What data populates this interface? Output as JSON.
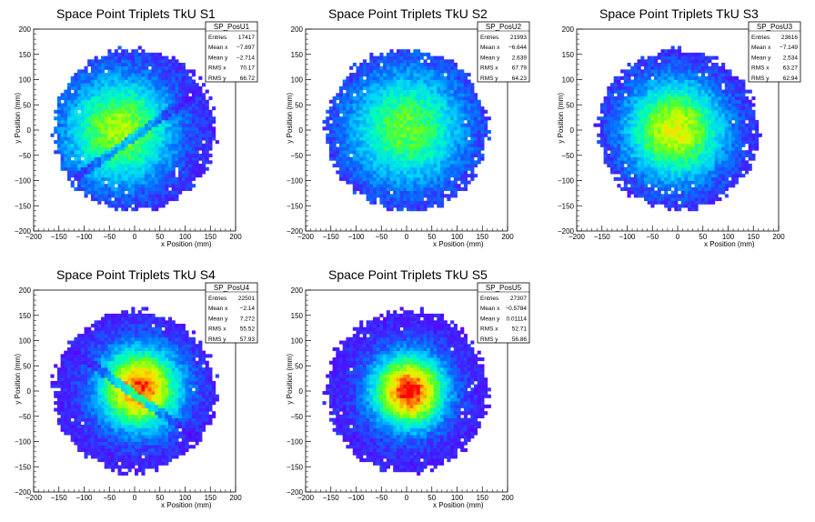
{
  "chart_data": [
    {
      "type": "heatmap",
      "title": "Space Point Triplets TkU S1",
      "xlabel": "x Position (mm)",
      "ylabel": "y Position (mm)",
      "xlim": [
        -200,
        200
      ],
      "ylim": [
        -200,
        200
      ],
      "xticks": [
        "−200",
        "−150",
        "−100",
        "−50",
        "0",
        "50",
        "100",
        "150",
        "200"
      ],
      "yticks": [
        "−200",
        "−150",
        "−100",
        "−50",
        "0",
        "50",
        "100",
        "150",
        "200"
      ],
      "stats": {
        "name": "SP_PosU1",
        "rows": [
          {
            "label": "Entries",
            "value": "17417"
          },
          {
            "label": "Mean x",
            "value": "−7.897"
          },
          {
            "label": "Mean y",
            "value": "−2.714"
          },
          {
            "label": "RMS x",
            "value": "70.17"
          },
          {
            "label": "RMS y",
            "value": "66.72"
          }
        ]
      },
      "shape": {
        "radius": 160,
        "center": [
          -30,
          0
        ],
        "sigma": 75,
        "peak": 0.62,
        "gap_band": true,
        "band_angle": 35,
        "band_offset": -10
      }
    },
    {
      "type": "heatmap",
      "title": "Space Point Triplets TkU S2",
      "xlabel": "x Position (mm)",
      "ylabel": "y Position (mm)",
      "xlim": [
        -200,
        200
      ],
      "ylim": [
        -200,
        200
      ],
      "xticks": [
        "−200",
        "−150",
        "−100",
        "−50",
        "0",
        "50",
        "100",
        "150",
        "200"
      ],
      "yticks": [
        "−200",
        "−150",
        "−100",
        "−50",
        "0",
        "50",
        "100",
        "150",
        "200"
      ],
      "stats": {
        "name": "SP_PosU2",
        "rows": [
          {
            "label": "Entries",
            "value": "21993"
          },
          {
            "label": "Mean x",
            "value": "−6.644"
          },
          {
            "label": "Mean y",
            "value": "2.639"
          },
          {
            "label": "RMS x",
            "value": "67.79"
          },
          {
            "label": "RMS y",
            "value": "64.23"
          }
        ]
      },
      "shape": {
        "radius": 160,
        "center": [
          0,
          5
        ],
        "sigma": 80,
        "peak": 0.55,
        "gap_band": false,
        "band_angle": 0,
        "band_offset": 0
      }
    },
    {
      "type": "heatmap",
      "title": "Space Point Triplets TkU S3",
      "xlabel": "x Position (mm)",
      "ylabel": "y Position (mm)",
      "xlim": [
        -200,
        200
      ],
      "ylim": [
        -200,
        200
      ],
      "xticks": [
        "−200",
        "−150",
        "−100",
        "−50",
        "0",
        "50",
        "100",
        "150",
        "200"
      ],
      "yticks": [
        "−200",
        "−150",
        "−100",
        "−50",
        "0",
        "50",
        "100",
        "150",
        "200"
      ],
      "stats": {
        "name": "SP_PosU3",
        "rows": [
          {
            "label": "Entries",
            "value": "23616"
          },
          {
            "label": "Mean x",
            "value": "−7.149"
          },
          {
            "label": "Mean y",
            "value": "2.534"
          },
          {
            "label": "RMS x",
            "value": "63.27"
          },
          {
            "label": "RMS y",
            "value": "62.94"
          }
        ]
      },
      "shape": {
        "radius": 158,
        "center": [
          -5,
          0
        ],
        "sigma": 68,
        "peak": 0.7,
        "gap_band": false,
        "band_angle": 0,
        "band_offset": 0
      }
    },
    {
      "type": "heatmap",
      "title": "Space Point Triplets TkU S4",
      "xlabel": "x Position (mm)",
      "ylabel": "y Position (mm)",
      "xlim": [
        -200,
        200
      ],
      "ylim": [
        -200,
        200
      ],
      "xticks": [
        "−200",
        "−150",
        "−100",
        "−50",
        "0",
        "50",
        "100",
        "150",
        "200"
      ],
      "yticks": [
        "−200",
        "−150",
        "−100",
        "−50",
        "0",
        "50",
        "100",
        "150",
        "200"
      ],
      "stats": {
        "name": "SP_PosU4",
        "rows": [
          {
            "label": "Entries",
            "value": "22501"
          },
          {
            "label": "Mean x",
            "value": "−2.14"
          },
          {
            "label": "Mean y",
            "value": "7.272"
          },
          {
            "label": "RMS x",
            "value": "55.52"
          },
          {
            "label": "RMS y",
            "value": "57.93"
          }
        ]
      },
      "shape": {
        "radius": 160,
        "center": [
          10,
          5
        ],
        "sigma": 55,
        "peak": 0.9,
        "gap_band": true,
        "band_angle": -35,
        "band_offset": -5
      }
    },
    {
      "type": "heatmap",
      "title": "Space Point Triplets TkU S5",
      "xlabel": "x Position (mm)",
      "ylabel": "y Position (mm)",
      "xlim": [
        -200,
        200
      ],
      "ylim": [
        -200,
        200
      ],
      "xticks": [
        "−200",
        "−150",
        "−100",
        "−50",
        "0",
        "50",
        "100",
        "150",
        "200"
      ],
      "yticks": [
        "−200",
        "−150",
        "−100",
        "−50",
        "0",
        "50",
        "100",
        "150",
        "200"
      ],
      "stats": {
        "name": "SP_PosU5",
        "rows": [
          {
            "label": "Entries",
            "value": "27307"
          },
          {
            "label": "Mean x",
            "value": "−0.5784"
          },
          {
            "label": "Mean y",
            "value": "0.01114"
          },
          {
            "label": "RMS x",
            "value": "52.71"
          },
          {
            "label": "RMS y",
            "value": "56.86"
          }
        ]
      },
      "shape": {
        "radius": 160,
        "center": [
          5,
          0
        ],
        "sigma": 50,
        "peak": 0.95,
        "gap_band": false,
        "band_angle": 0,
        "band_offset": 0
      }
    }
  ]
}
